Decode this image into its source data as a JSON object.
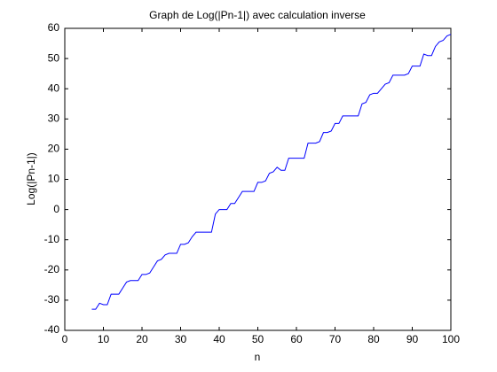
{
  "chart_data": {
    "type": "line",
    "title": "Graph de Log(|Pn-1|) avec calculation inverse",
    "xlabel": "n",
    "ylabel": "Log(|Pn-1|)",
    "x": [
      7,
      8,
      9,
      10,
      11,
      12,
      13,
      14,
      15,
      16,
      17,
      18,
      19,
      20,
      21,
      22,
      23,
      24,
      25,
      26,
      27,
      28,
      29,
      30,
      31,
      32,
      33,
      34,
      35,
      36,
      37,
      38,
      39,
      40,
      41,
      42,
      43,
      44,
      45,
      46,
      47,
      48,
      49,
      50,
      51,
      52,
      53,
      54,
      55,
      56,
      57,
      58,
      59,
      60,
      61,
      62,
      63,
      64,
      65,
      66,
      67,
      68,
      69,
      70,
      71,
      72,
      73,
      74,
      75,
      76,
      77,
      78,
      79,
      80,
      81,
      82,
      83,
      84,
      85,
      86,
      87,
      88,
      89,
      90,
      91,
      92,
      93,
      94,
      95,
      96,
      97,
      98,
      99,
      100
    ],
    "series": [
      {
        "name": "Log(|Pn-1|)",
        "color": "#0000ff",
        "values": [
          -33,
          -33,
          -31,
          -31.5,
          -31.5,
          -28,
          -28,
          -28,
          -26,
          -24,
          -23.5,
          -23.5,
          -23.5,
          -21.5,
          -21.5,
          -21,
          -19,
          -17,
          -16.5,
          -15,
          -14.5,
          -14.5,
          -14.5,
          -11.5,
          -11.5,
          -11,
          -9,
          -7.5,
          -7.5,
          -7.5,
          -7.5,
          -7.5,
          -1.5,
          0,
          0,
          0,
          2,
          2,
          4,
          6,
          6,
          6,
          6,
          9,
          9,
          9.5,
          12,
          12.5,
          14,
          13,
          13,
          17,
          17,
          17,
          17,
          17,
          22,
          22,
          22,
          22.5,
          25.5,
          25.5,
          26,
          28.5,
          28.5,
          31,
          31,
          31,
          31,
          31,
          35,
          35.5,
          38,
          38.5,
          38.5,
          40,
          41.5,
          42,
          44.5,
          44.5,
          44.5,
          44.5,
          45,
          47.5,
          47.5,
          47.5,
          51.5,
          51,
          51,
          54,
          55.5,
          56,
          57.5,
          58
        ]
      }
    ],
    "xlim": [
      0,
      100
    ],
    "xticks": [
      0,
      10,
      20,
      30,
      40,
      50,
      60,
      70,
      80,
      90,
      100
    ],
    "ylim": [
      -40,
      60
    ],
    "yticks": [
      -40,
      -30,
      -20,
      -10,
      0,
      10,
      20,
      30,
      40,
      50,
      60
    ],
    "grid": false
  }
}
